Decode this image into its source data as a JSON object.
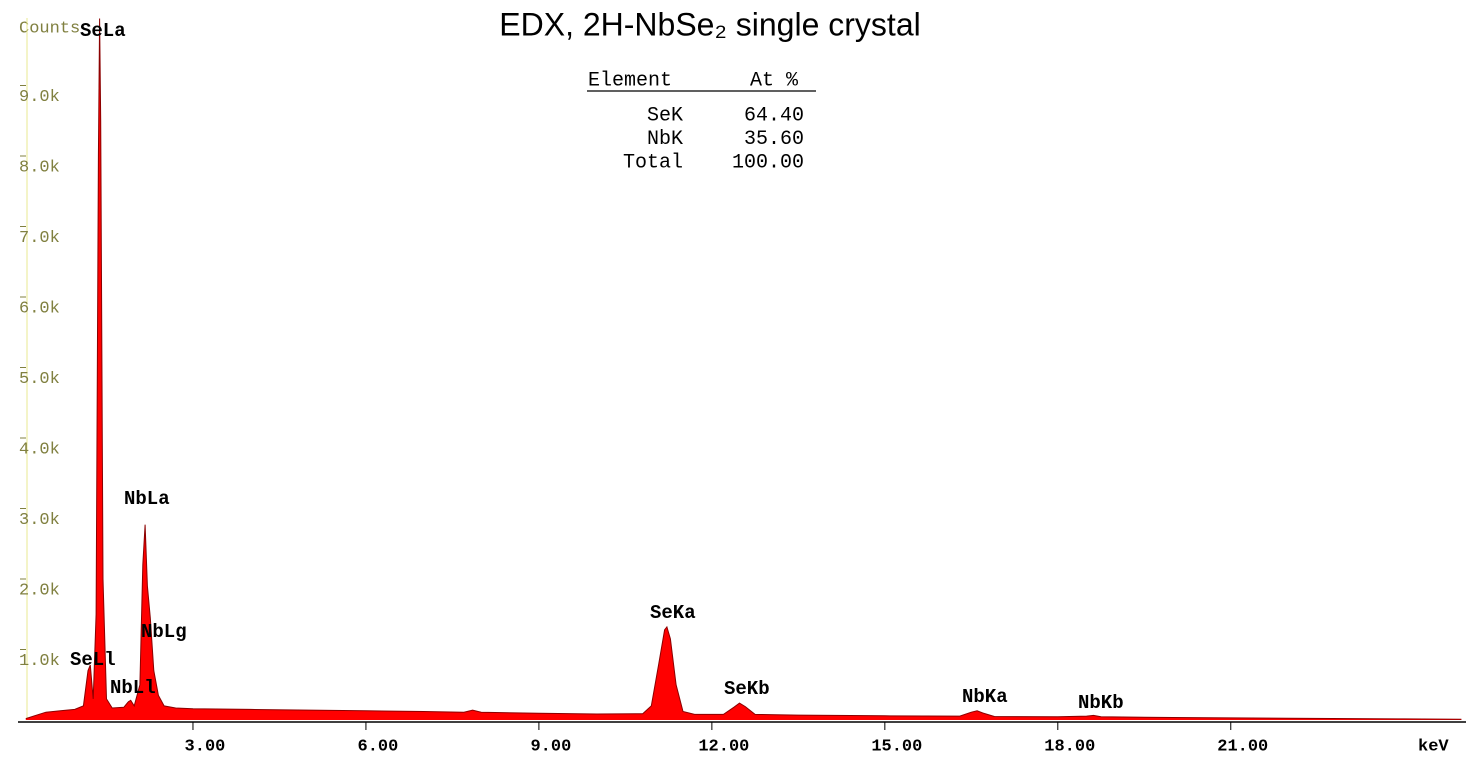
{
  "chart_data": {
    "type": "area",
    "title": "EDX, 2H-NbSe₂ single crystal",
    "y_label": "Counts",
    "x_label": "keV",
    "x": [
      0.1,
      0.25,
      0.45,
      0.7,
      0.95,
      1.1,
      1.18,
      1.22,
      1.27,
      1.32,
      1.36,
      1.38,
      1.4,
      1.44,
      1.5,
      1.6,
      1.8,
      1.88,
      1.92,
      1.98,
      2.08,
      2.13,
      2.17,
      2.21,
      2.26,
      2.32,
      2.4,
      2.5,
      2.7,
      3.0,
      4.0,
      5.0,
      6.0,
      7.0,
      7.7,
      7.85,
      8.0,
      9.0,
      10.0,
      10.8,
      10.95,
      11.08,
      11.18,
      11.22,
      11.28,
      11.38,
      11.5,
      11.7,
      12.2,
      12.38,
      12.48,
      12.58,
      12.75,
      13.5,
      15.0,
      16.3,
      16.5,
      16.6,
      16.7,
      16.9,
      18.0,
      18.5,
      18.62,
      18.75,
      20.0,
      22.0,
      24.0,
      25.0
    ],
    "values": [
      20,
      60,
      110,
      130,
      150,
      200,
      700,
      780,
      300,
      1500,
      8000,
      9950,
      8500,
      2000,
      300,
      170,
      180,
      260,
      280,
      200,
      500,
      2200,
      2770,
      1900,
      1450,
      700,
      350,
      200,
      170,
      160,
      150,
      140,
      130,
      120,
      110,
      140,
      110,
      95,
      85,
      90,
      200,
      800,
      1280,
      1320,
      1150,
      500,
      120,
      80,
      80,
      180,
      240,
      190,
      80,
      70,
      60,
      55,
      110,
      130,
      100,
      50,
      45,
      55,
      65,
      45,
      35,
      25,
      15,
      10
    ],
    "color": "#ff0000",
    "edge_color": "#8b0000",
    "xlim": [
      0,
      25.08
    ],
    "ylim": [
      0,
      10000
    ],
    "xticks": [
      {
        "value": 3,
        "label": "3.00"
      },
      {
        "value": 6,
        "label": "6.00"
      },
      {
        "value": 9,
        "label": "9.00"
      },
      {
        "value": 12,
        "label": "12.00"
      },
      {
        "value": 15,
        "label": "15.00"
      },
      {
        "value": 18,
        "label": "18.00"
      },
      {
        "value": 21,
        "label": "21.00"
      }
    ],
    "yticks": [
      {
        "value": 1000,
        "label": "1.0k"
      },
      {
        "value": 2000,
        "label": "2.0k"
      },
      {
        "value": 3000,
        "label": "3.0k"
      },
      {
        "value": 4000,
        "label": "4.0k"
      },
      {
        "value": 5000,
        "label": "5.0k"
      },
      {
        "value": 6000,
        "label": "6.0k"
      },
      {
        "value": 7000,
        "label": "7.0k"
      },
      {
        "value": 8000,
        "label": "8.0k"
      },
      {
        "value": 9000,
        "label": "9.0k"
      }
    ],
    "peak_labels": [
      "SeLa",
      "SeLl",
      "NbLl",
      "NbLa",
      "NbLg",
      "SeKa",
      "SeKb",
      "NbKa",
      "NbKb"
    ]
  },
  "table": {
    "header": [
      "Element",
      "At %"
    ],
    "rows": [
      [
        "SeK",
        "64.40"
      ],
      [
        "NbK",
        "35.60"
      ],
      [
        "Total",
        "100.00"
      ]
    ]
  }
}
